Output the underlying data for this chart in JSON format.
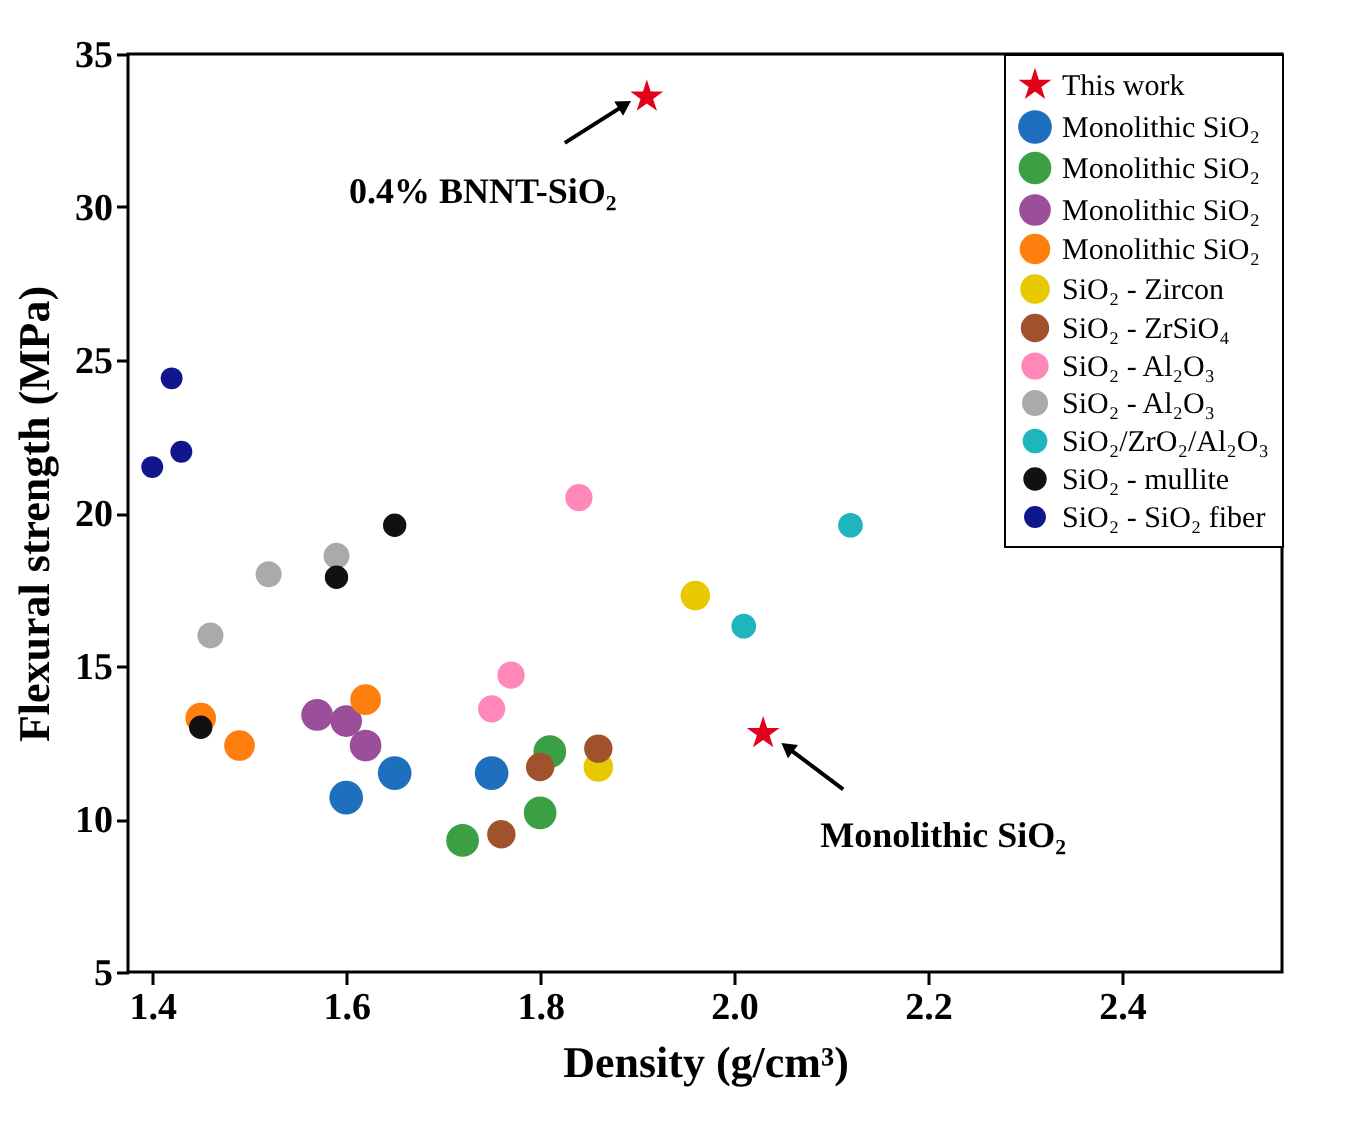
{
  "chart_data": {
    "type": "scatter",
    "xlabel": "Density (g/cm³)",
    "ylabel": "Flexural strength (MPa)",
    "xlim": [
      1.375,
      2.565
    ],
    "xticks": [
      1.4,
      1.6,
      1.8,
      {
        "value": 2,
        "label": "2.0"
      },
      2.2,
      2.4
    ],
    "ylim": [
      5,
      35
    ],
    "yticks": [
      5,
      10,
      15,
      20,
      25,
      30,
      35
    ],
    "grid": false,
    "legend": "top right",
    "marker": "circle",
    "series": [
      {
        "name": "This work",
        "color": "#e3001b",
        "marker": "star",
        "x": [
          1.91,
          2.03
        ],
        "values": [
          33.6,
          12.8
        ]
      },
      {
        "name": "Monolithic SiO₂",
        "color": "#1f6fbf",
        "x": [
          1.6,
          1.65,
          1.75
        ],
        "values": [
          10.7,
          11.5,
          11.5
        ]
      },
      {
        "name": "Monolithic SiO₂",
        "color": "#3aa043",
        "x": [
          1.72,
          1.8,
          1.81
        ],
        "values": [
          9.3,
          10.2,
          12.2
        ]
      },
      {
        "name": "Monolithic SiO₂",
        "color": "#9b4f9b",
        "x": [
          1.57,
          1.6,
          1.62
        ],
        "values": [
          13.4,
          13.2,
          12.4
        ]
      },
      {
        "name": "Monolithic SiO₂",
        "color": "#ff7f0e",
        "x": [
          1.45,
          1.49,
          1.62
        ],
        "values": [
          13.3,
          12.4,
          13.9
        ]
      },
      {
        "name": "SiO₂ - Zircon",
        "color": "#e8c800",
        "x": [
          1.96,
          1.86
        ],
        "values": [
          17.3,
          11.7
        ]
      },
      {
        "name": "SiO₂ - ZrSiO₄",
        "color": "#a0522d",
        "x": [
          1.76,
          1.8,
          1.86
        ],
        "values": [
          9.5,
          11.7,
          12.3
        ]
      },
      {
        "name": "SiO₂ - Al₂O₃",
        "color": "#ff88b8",
        "x": [
          1.84,
          1.77,
          1.75
        ],
        "values": [
          20.5,
          14.7,
          13.6
        ]
      },
      {
        "name": "SiO₂ - Al₂O₃",
        "color": "#aaaaaa",
        "x": [
          1.52,
          1.59,
          1.46
        ],
        "values": [
          18.0,
          18.6,
          16.0
        ]
      },
      {
        "name": "SiO₂/ZrO₂/Al₂O₃",
        "color": "#1fb5bd",
        "x": [
          2.12,
          2.01
        ],
        "values": [
          19.6,
          16.3
        ]
      },
      {
        "name": "SiO₂ - mullite",
        "color": "#111111",
        "x": [
          1.65,
          1.59,
          1.45
        ],
        "values": [
          19.6,
          17.9,
          13.0
        ]
      },
      {
        "name": "SiO₂ - SiO₂ fiber",
        "color": "#10168c",
        "x": [
          1.42,
          1.43,
          1.4
        ],
        "values": [
          24.4,
          22.0,
          21.5
        ]
      }
    ],
    "annotations": [
      {
        "text": "0.4% BNNT-SiO₂",
        "x": 1.91,
        "y": 33.6
      },
      {
        "text": "Monolithic SiO₂",
        "x": 2.03,
        "y": 12.8
      }
    ]
  }
}
